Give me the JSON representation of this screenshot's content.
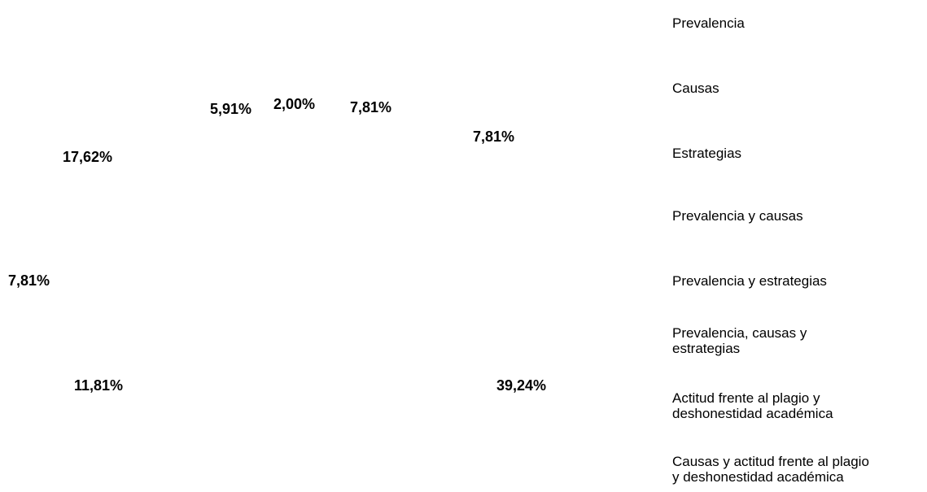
{
  "data_labels": [
    "5,91%",
    "2,00%",
    "7,81%",
    "7,81%",
    "17,62%",
    "7,81%",
    "11,81%",
    "39,24%"
  ],
  "legend": [
    "Prevalencia",
    "Causas",
    "Estrategias",
    "Prevalencia y causas",
    "Prevalencia y estrategias",
    "Prevalencia, causas y\nestrategias",
    "Actitud frente al plagio y\ndeshonestidad académica",
    "Causas y actitud frente al plagio\ny deshonestidad académica"
  ]
}
